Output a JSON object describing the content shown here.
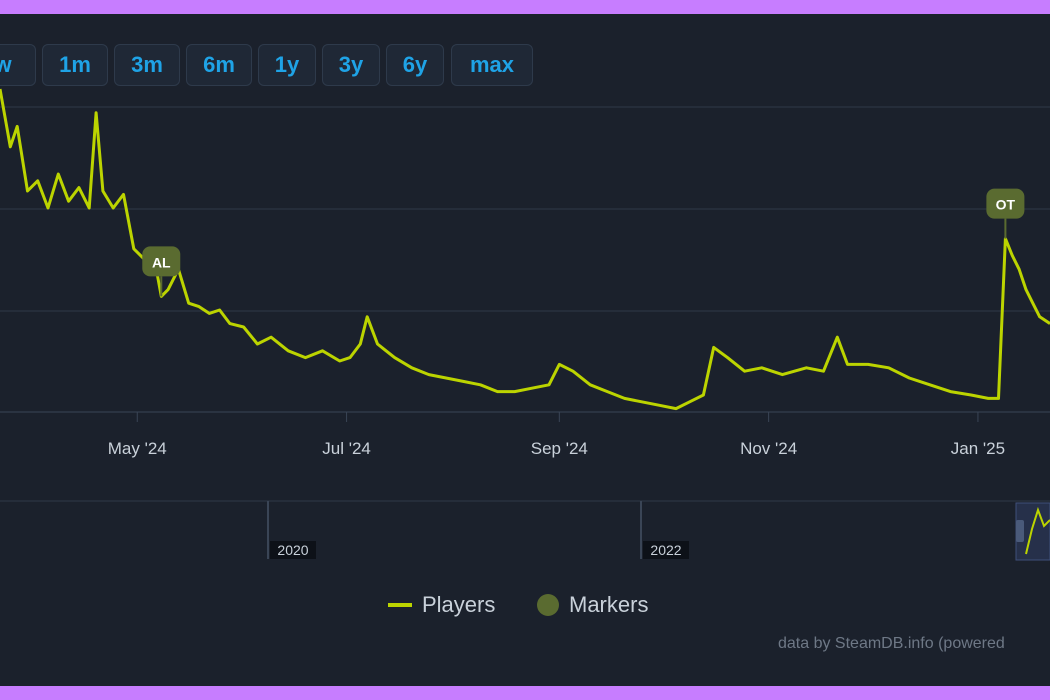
{
  "range_buttons": [
    "w",
    "1m",
    "3m",
    "6m",
    "1y",
    "3y",
    "6y",
    "max"
  ],
  "legend": {
    "players": "Players",
    "markers": "Markers"
  },
  "credit": "data by SteamDB.info (powered",
  "colors": {
    "line": "#bcd400",
    "marker": "#5a6b30",
    "accent": "#1fa3e6",
    "background": "#1b212c"
  },
  "chart_data": {
    "type": "line",
    "title": "",
    "xlabel": "",
    "ylabel": "",
    "x_ticks": [
      "May '24",
      "Jul '24",
      "Sep '24",
      "Nov '24",
      "Jan '25"
    ],
    "navigator_ticks": [
      "2020",
      "2022"
    ],
    "grid": true,
    "legend_position": "bottom-center",
    "y_axis_labels_visible": false,
    "x_range": [
      "2024-03-22",
      "2025-01-22"
    ],
    "series": [
      {
        "name": "Players",
        "values": [
          [
            "2024-03-22",
            95
          ],
          [
            "2024-03-25",
            78
          ],
          [
            "2024-03-27",
            84
          ],
          [
            "2024-03-30",
            65
          ],
          [
            "2024-04-02",
            68
          ],
          [
            "2024-04-05",
            60
          ],
          [
            "2024-04-08",
            70
          ],
          [
            "2024-04-11",
            62
          ],
          [
            "2024-04-14",
            66
          ],
          [
            "2024-04-17",
            60
          ],
          [
            "2024-04-19",
            88
          ],
          [
            "2024-04-21",
            65
          ],
          [
            "2024-04-24",
            60
          ],
          [
            "2024-04-27",
            64
          ],
          [
            "2024-04-30",
            48
          ],
          [
            "2024-05-03",
            45
          ],
          [
            "2024-05-06",
            45
          ],
          [
            "2024-05-08",
            34
          ],
          [
            "2024-05-10",
            36
          ],
          [
            "2024-05-13",
            42
          ],
          [
            "2024-05-16",
            32
          ],
          [
            "2024-05-19",
            31
          ],
          [
            "2024-05-22",
            29
          ],
          [
            "2024-05-25",
            30
          ],
          [
            "2024-05-28",
            26
          ],
          [
            "2024-06-01",
            25
          ],
          [
            "2024-06-05",
            20
          ],
          [
            "2024-06-09",
            22
          ],
          [
            "2024-06-14",
            18
          ],
          [
            "2024-06-19",
            16
          ],
          [
            "2024-06-24",
            18
          ],
          [
            "2024-06-29",
            15
          ],
          [
            "2024-07-02",
            16
          ],
          [
            "2024-07-05",
            20
          ],
          [
            "2024-07-07",
            28
          ],
          [
            "2024-07-10",
            20
          ],
          [
            "2024-07-15",
            16
          ],
          [
            "2024-07-20",
            13
          ],
          [
            "2024-07-25",
            11
          ],
          [
            "2024-07-30",
            10
          ],
          [
            "2024-08-04",
            9
          ],
          [
            "2024-08-09",
            8
          ],
          [
            "2024-08-14",
            6
          ],
          [
            "2024-08-19",
            6
          ],
          [
            "2024-08-24",
            7
          ],
          [
            "2024-08-29",
            8
          ],
          [
            "2024-09-01",
            14
          ],
          [
            "2024-09-05",
            12
          ],
          [
            "2024-09-10",
            8
          ],
          [
            "2024-09-15",
            6
          ],
          [
            "2024-09-20",
            4
          ],
          [
            "2024-09-25",
            3
          ],
          [
            "2024-09-30",
            2
          ],
          [
            "2024-10-05",
            1
          ],
          [
            "2024-10-09",
            3
          ],
          [
            "2024-10-13",
            5
          ],
          [
            "2024-10-16",
            19
          ],
          [
            "2024-10-20",
            16
          ],
          [
            "2024-10-25",
            12
          ],
          [
            "2024-10-30",
            13
          ],
          [
            "2024-11-05",
            11
          ],
          [
            "2024-11-12",
            13
          ],
          [
            "2024-11-17",
            12
          ],
          [
            "2024-11-21",
            22
          ],
          [
            "2024-11-24",
            14
          ],
          [
            "2024-11-30",
            14
          ],
          [
            "2024-12-06",
            13
          ],
          [
            "2024-12-12",
            10
          ],
          [
            "2024-12-18",
            8
          ],
          [
            "2024-12-24",
            6
          ],
          [
            "2024-12-30",
            5
          ],
          [
            "2025-01-04",
            4
          ],
          [
            "2025-01-07",
            4
          ],
          [
            "2025-01-09",
            51
          ],
          [
            "2025-01-11",
            46
          ],
          [
            "2025-01-13",
            42
          ],
          [
            "2025-01-15",
            36
          ],
          [
            "2025-01-17",
            32
          ],
          [
            "2025-01-19",
            28
          ],
          [
            "2025-01-22",
            26
          ]
        ]
      }
    ],
    "markers": [
      {
        "label": "AL",
        "date": "2024-05-08",
        "value": 34
      },
      {
        "label": "OT",
        "date": "2025-01-09",
        "value": 51
      }
    ]
  }
}
